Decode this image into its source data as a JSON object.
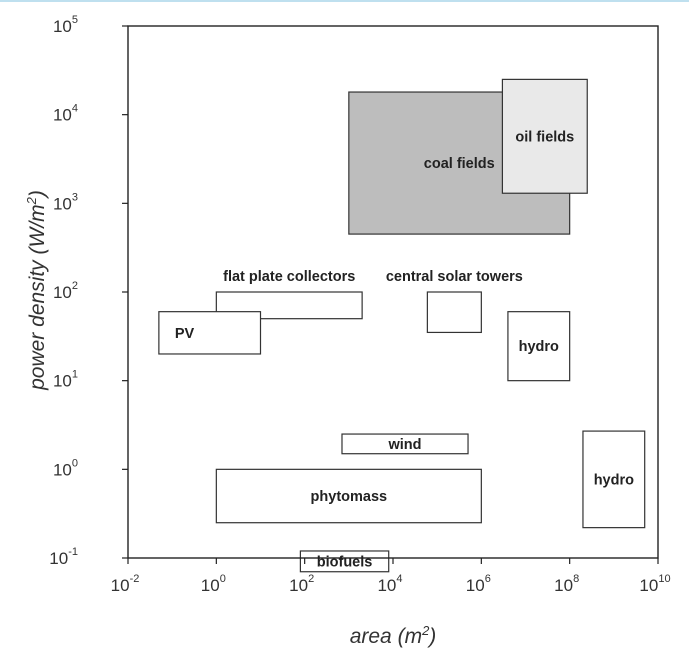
{
  "chart_data": {
    "type": "region",
    "xlabel": "area",
    "xunit": "m",
    "xunit_exp": "2",
    "ylabel": "power density",
    "yunit": "W/m",
    "yunit_exp": "2",
    "x_scale": "log",
    "y_scale": "log",
    "xlim": [
      0.01,
      10000000000
    ],
    "ylim": [
      0.1,
      100000
    ],
    "grid": false,
    "xticks": [
      {
        "value": 0.01,
        "base": "10",
        "exp": "-2"
      },
      {
        "value": 1,
        "base": "10",
        "exp": "0"
      },
      {
        "value": 100,
        "base": "10",
        "exp": "2"
      },
      {
        "value": 10000,
        "base": "10",
        "exp": "4"
      },
      {
        "value": 1000000,
        "base": "10",
        "exp": "6"
      },
      {
        "value": 100000000,
        "base": "10",
        "exp": "8"
      },
      {
        "value": 10000000000,
        "base": "10",
        "exp": "10"
      }
    ],
    "yticks": [
      {
        "value": 0.1,
        "base": "10",
        "exp": "-1"
      },
      {
        "value": 1,
        "base": "10",
        "exp": "0"
      },
      {
        "value": 10,
        "base": "10",
        "exp": "1"
      },
      {
        "value": 100,
        "base": "10",
        "exp": "2"
      },
      {
        "value": 1000,
        "base": "10",
        "exp": "3"
      },
      {
        "value": 10000,
        "base": "10",
        "exp": "4"
      },
      {
        "value": 100000,
        "base": "10",
        "exp": "5"
      }
    ],
    "regions": [
      {
        "label": "coal fields",
        "x": [
          1000,
          100000000
        ],
        "y": [
          450,
          18000
        ],
        "fill": "#bdbdbd",
        "label_position": "inside"
      },
      {
        "label": "oil fields",
        "x": [
          3000000,
          250000000
        ],
        "y": [
          1300,
          25000
        ],
        "fill": "#e9e9e9",
        "label_position": "inside"
      },
      {
        "label": "flat plate collectors",
        "x": [
          1,
          2000
        ],
        "y": [
          50,
          100
        ],
        "fill": "#ffffff",
        "label_position": "above"
      },
      {
        "label": "PV",
        "x": [
          0.05,
          10
        ],
        "y": [
          20,
          60
        ],
        "fill": "#ffffff",
        "label_position": "inside-left"
      },
      {
        "label": "central solar towers",
        "x": [
          60000,
          1000000
        ],
        "y": [
          35,
          100
        ],
        "fill": "#ffffff",
        "label_position": "above"
      },
      {
        "label": "hydro",
        "x": [
          4000000,
          100000000
        ],
        "y": [
          10,
          60
        ],
        "fill": "#ffffff",
        "label_position": "inside"
      },
      {
        "label": "wind",
        "x": [
          700,
          500000
        ],
        "y": [
          1.5,
          2.5
        ],
        "fill": "#ffffff",
        "label_position": "inside"
      },
      {
        "label": "phytomass",
        "x": [
          1,
          1000000
        ],
        "y": [
          0.25,
          1
        ],
        "fill": "#ffffff",
        "label_position": "inside"
      },
      {
        "label": "hydro",
        "x": [
          200000000,
          5000000000
        ],
        "y": [
          0.22,
          2.7
        ],
        "fill": "#ffffff",
        "label_position": "inside"
      },
      {
        "label": "biofuels",
        "x": [
          80,
          8000
        ],
        "y": [
          0.07,
          0.12
        ],
        "fill": "#ffffff",
        "label_position": "inside"
      }
    ]
  }
}
